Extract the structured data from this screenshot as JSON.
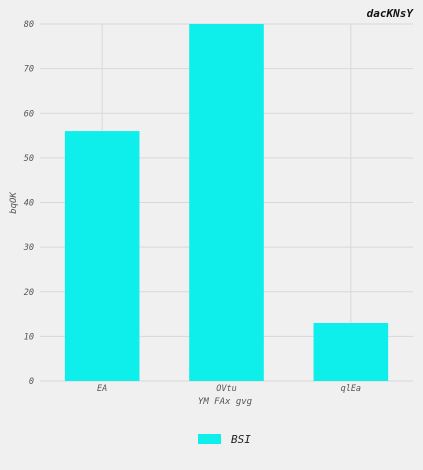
{
  "chart_data": {
    "type": "bar",
    "title": "dacKNsY",
    "xlabel": "YM FAx gvg",
    "ylabel": "bqOK",
    "categories": [
      "EA",
      "OVtu",
      "qlEa"
    ],
    "series": [
      {
        "name": "BSI",
        "values": [
          56,
          80,
          13
        ],
        "color": "#0eeeea"
      }
    ],
    "ylim": [
      0,
      80
    ],
    "yticks": [
      0,
      10,
      20,
      30,
      40,
      50,
      60,
      70,
      80
    ],
    "grid": true,
    "legend_position": "bottom-center"
  },
  "colors": {
    "background": "#f0f0f0",
    "grid": "#d8d8d8",
    "bar": "#0eeeea"
  }
}
